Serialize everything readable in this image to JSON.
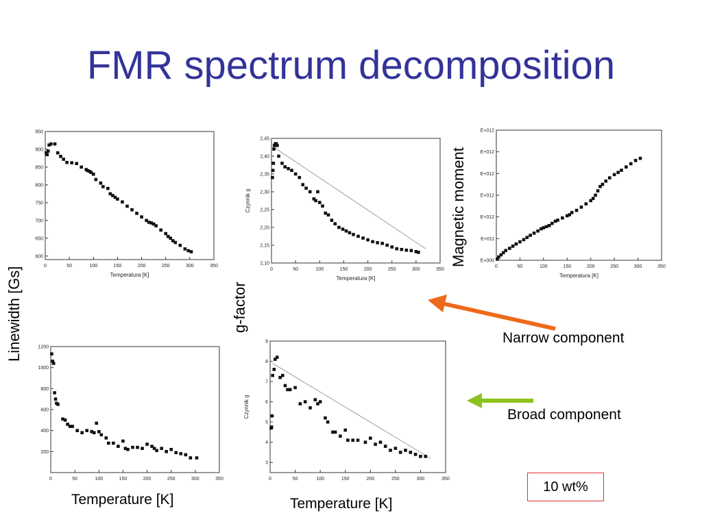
{
  "slide": {
    "title": "FMR spectrum decomposition",
    "left_ylabel": "Linewidth [Gs]",
    "middle_ylabel": "g-factor",
    "right_ylabel": "Magnetic moment",
    "bottom_xlabel_left": "Temperature [K]",
    "bottom_xlabel_middle": "Temperature [K]",
    "narrow_label": "Narrow component",
    "broad_label": "Broad component",
    "concentration_label": "10 wt%",
    "colors": {
      "title": "#33339a",
      "narrow_arrow": "#ee6a1a",
      "broad_arrow": "#8cc21e",
      "concentration_box_border": "#e03030"
    }
  },
  "chart_data": [
    {
      "id": "narrow-linewidth",
      "type": "scatter",
      "xlabel": "Temperatura [K]",
      "ylabel": "",
      "xlim": [
        0,
        350
      ],
      "ylim": [
        590,
        950
      ],
      "xticks": [
        0,
        50,
        100,
        150,
        200,
        250,
        300,
        350
      ],
      "yticks": [
        600,
        650,
        700,
        750,
        800,
        850,
        900,
        950
      ],
      "ytick_labels": [
        "600",
        "650",
        "700",
        "750",
        "800",
        "850",
        "900",
        "950"
      ],
      "series": [
        {
          "name": "",
          "x": [
            2,
            4,
            6,
            8,
            12,
            20,
            26,
            32,
            38,
            45,
            55,
            65,
            75,
            85,
            88,
            92,
            95,
            100,
            105,
            115,
            120,
            130,
            135,
            140,
            145,
            150,
            160,
            170,
            180,
            190,
            200,
            210,
            215,
            220,
            225,
            230,
            240,
            250,
            255,
            260,
            265,
            270,
            280,
            290,
            297,
            303
          ],
          "y": [
            890,
            885,
            895,
            912,
            915,
            915,
            890,
            880,
            872,
            863,
            862,
            860,
            850,
            843,
            840,
            838,
            835,
            830,
            815,
            805,
            795,
            790,
            775,
            770,
            765,
            760,
            752,
            740,
            730,
            720,
            710,
            700,
            695,
            693,
            690,
            685,
            673,
            663,
            655,
            650,
            643,
            638,
            630,
            620,
            615,
            612
          ]
        }
      ],
      "fit_line": null
    },
    {
      "id": "narrow-gfactor",
      "type": "scatter",
      "xlabel": "Temperatura [K]",
      "ylabel": "Czynnik g",
      "xlim": [
        0,
        350
      ],
      "ylim": [
        2.1,
        2.45
      ],
      "xticks": [
        0,
        50,
        100,
        150,
        200,
        250,
        300,
        350
      ],
      "yticks": [
        2.1,
        2.15,
        2.2,
        2.25,
        2.3,
        2.35,
        2.4,
        2.45
      ],
      "ytick_labels": [
        "2,10",
        "2,15",
        "2,20",
        "2,25",
        "2,30",
        "2,35",
        "2,40",
        "2,45"
      ],
      "series": [
        {
          "name": "",
          "x": [
            2,
            3,
            4,
            5,
            6,
            8,
            10,
            12,
            15,
            22,
            28,
            35,
            42,
            50,
            58,
            65,
            72,
            80,
            88,
            92,
            96,
            100,
            106,
            112,
            118,
            125,
            132,
            140,
            148,
            155,
            162,
            170,
            180,
            190,
            200,
            210,
            220,
            230,
            240,
            250,
            260,
            270,
            280,
            290,
            300,
            305
          ],
          "y": [
            2.34,
            2.36,
            2.38,
            2.42,
            2.43,
            2.435,
            2.435,
            2.43,
            2.4,
            2.38,
            2.37,
            2.365,
            2.36,
            2.35,
            2.34,
            2.32,
            2.31,
            2.3,
            2.28,
            2.275,
            2.3,
            2.27,
            2.26,
            2.24,
            2.235,
            2.22,
            2.21,
            2.2,
            2.195,
            2.19,
            2.185,
            2.18,
            2.175,
            2.17,
            2.165,
            2.16,
            2.157,
            2.155,
            2.15,
            2.145,
            2.14,
            2.138,
            2.136,
            2.135,
            2.132,
            2.13
          ]
        }
      ],
      "fit_line": {
        "x": [
          5,
          320
        ],
        "y": [
          2.425,
          2.14
        ]
      }
    },
    {
      "id": "narrow-magnetic-moment",
      "type": "scatter",
      "xlabel": "Temperatura [K]",
      "ylabel": "",
      "xlim": [
        0,
        350
      ],
      "ylim": [
        0,
        6
      ],
      "xticks": [
        0,
        50,
        100,
        150,
        200,
        250,
        300,
        350
      ],
      "yticks": [
        0,
        1,
        2,
        3,
        4,
        5,
        6
      ],
      "ytick_labels": [
        "E+000",
        "E+011",
        "E+012",
        "E+012",
        "E+012",
        "E+012",
        "E+012"
      ],
      "series": [
        {
          "name": "",
          "x": [
            2,
            5,
            10,
            15,
            20,
            28,
            35,
            42,
            50,
            58,
            65,
            72,
            80,
            88,
            95,
            100,
            106,
            112,
            118,
            125,
            130,
            140,
            150,
            155,
            160,
            170,
            180,
            190,
            200,
            205,
            210,
            215,
            220,
            225,
            232,
            240,
            250,
            258,
            265,
            275,
            285,
            295,
            305
          ],
          "y": [
            0.05,
            0.15,
            0.25,
            0.35,
            0.45,
            0.55,
            0.65,
            0.75,
            0.85,
            0.95,
            1.05,
            1.15,
            1.25,
            1.35,
            1.45,
            1.5,
            1.55,
            1.6,
            1.7,
            1.8,
            1.85,
            1.95,
            2.05,
            2.1,
            2.2,
            2.3,
            2.45,
            2.6,
            2.75,
            2.85,
            3.0,
            3.2,
            3.4,
            3.5,
            3.65,
            3.8,
            3.95,
            4.05,
            4.15,
            4.3,
            4.45,
            4.6,
            4.7
          ]
        }
      ],
      "fit_line": null
    },
    {
      "id": "broad-linewidth",
      "type": "scatter",
      "xlabel": "",
      "ylabel": "",
      "xlim": [
        0,
        350
      ],
      "ylim": [
        0,
        1200
      ],
      "xticks": [
        0,
        50,
        100,
        150,
        200,
        250,
        300,
        350
      ],
      "yticks": [
        200,
        400,
        600,
        800,
        1000,
        1200
      ],
      "ytick_labels": [
        "200",
        "400",
        "600",
        "800",
        "1000",
        "1200"
      ],
      "series": [
        {
          "name": "",
          "x": [
            2,
            4,
            6,
            8,
            10,
            12,
            15,
            25,
            30,
            35,
            40,
            45,
            55,
            65,
            75,
            85,
            90,
            95,
            100,
            105,
            115,
            120,
            130,
            140,
            150,
            155,
            160,
            170,
            180,
            190,
            200,
            210,
            215,
            220,
            230,
            240,
            250,
            260,
            270,
            280,
            290,
            303
          ],
          "y": [
            1130,
            1060,
            1040,
            760,
            700,
            660,
            650,
            510,
            500,
            460,
            440,
            440,
            400,
            380,
            400,
            390,
            380,
            470,
            390,
            360,
            330,
            280,
            280,
            250,
            300,
            230,
            220,
            240,
            240,
            230,
            270,
            250,
            230,
            210,
            230,
            200,
            220,
            190,
            180,
            170,
            140,
            140
          ]
        }
      ],
      "fit_line": null
    },
    {
      "id": "broad-gfactor",
      "type": "scatter",
      "xlabel": "",
      "ylabel": "Czynnik g",
      "xlim": [
        0,
        350
      ],
      "ylim": [
        2.5,
        9
      ],
      "xticks": [
        0,
        50,
        100,
        150,
        200,
        250,
        300,
        350
      ],
      "yticks": [
        3,
        4,
        5,
        6,
        7,
        8,
        9
      ],
      "ytick_labels": [
        "3",
        "4",
        "5",
        "6",
        "7",
        "8",
        "9"
      ],
      "series": [
        {
          "name": "",
          "x": [
            2,
            3,
            4,
            5,
            8,
            10,
            14,
            20,
            25,
            30,
            35,
            40,
            50,
            60,
            70,
            80,
            90,
            95,
            100,
            110,
            115,
            125,
            130,
            140,
            150,
            155,
            165,
            175,
            190,
            200,
            210,
            220,
            230,
            240,
            250,
            260,
            270,
            280,
            290,
            300,
            310
          ],
          "y": [
            4.7,
            4.75,
            5.3,
            7.3,
            7.6,
            8.1,
            8.2,
            7.2,
            7.3,
            6.8,
            6.6,
            6.6,
            6.7,
            5.9,
            6.0,
            5.7,
            6.1,
            5.9,
            6.0,
            5.2,
            5.0,
            4.5,
            4.5,
            4.3,
            4.6,
            4.1,
            4.1,
            4.1,
            4.0,
            4.2,
            3.9,
            4.0,
            3.8,
            3.6,
            3.7,
            3.5,
            3.6,
            3.5,
            3.4,
            3.3,
            3.3
          ]
        }
      ],
      "fit_line": {
        "x": [
          5,
          320
        ],
        "y": [
          7.9,
          3.2
        ]
      }
    }
  ]
}
